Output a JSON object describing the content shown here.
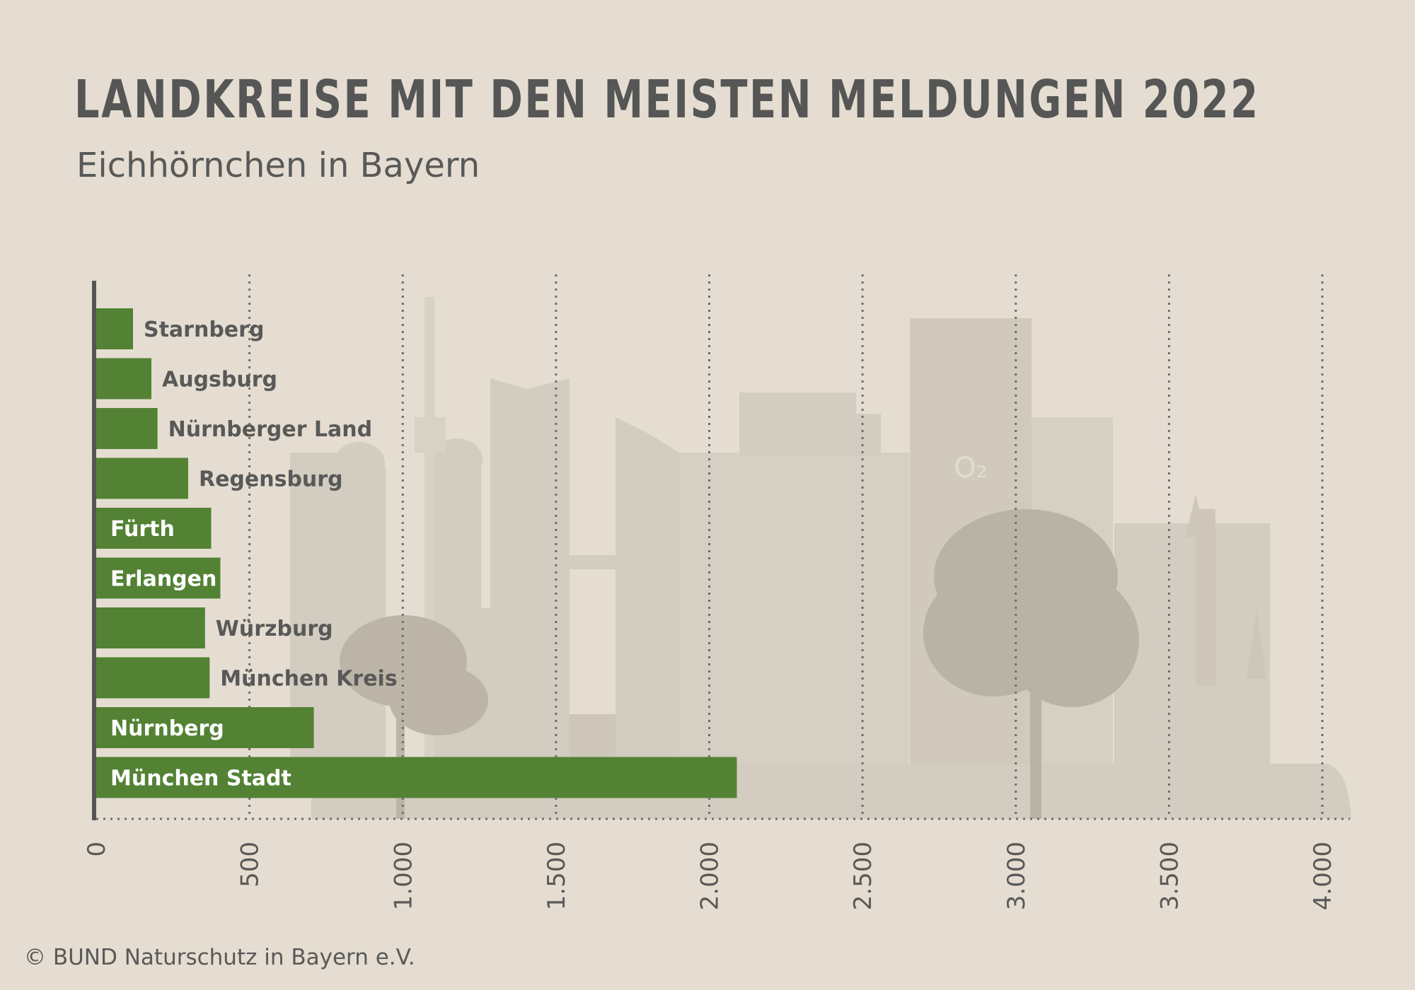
{
  "title": "LANDKREISE MIT DEN MEISTEN MELDUNGEN 2022",
  "subtitle": "Eichhörnchen in Bayern",
  "credit": "© BUND Naturschutz in Bayern e.V.",
  "skyline_sign": "O₂",
  "colors": {
    "background": "#e5ddd1",
    "bar": "#538234",
    "text": "#585958",
    "label_inside": "#ffffff",
    "grid": "#6e6e6c",
    "skyline": "#d3ccc0",
    "skyline_dark": "#c7c0b3",
    "tree": "#b8b2a4"
  },
  "chart_data": {
    "type": "bar",
    "orientation": "horizontal",
    "categories": [
      "Starnberg",
      "Augsburg",
      "Nürnberger Land",
      "Regensburg",
      "Fürth",
      "Erlangen",
      "Würzburg",
      "München Kreis",
      "Nürnberg",
      "München Stadt"
    ],
    "values": [
      120,
      180,
      200,
      300,
      375,
      405,
      355,
      370,
      710,
      2090
    ],
    "label_inside": [
      false,
      false,
      false,
      false,
      true,
      true,
      false,
      false,
      true,
      true
    ],
    "xlim": [
      0,
      4000
    ],
    "xticks": [
      0,
      500,
      1000,
      1500,
      2000,
      2500,
      3000,
      3500,
      4000
    ],
    "xtick_labels": [
      "0",
      "500",
      "1.000",
      "1.500",
      "2.000",
      "2.500",
      "3.000",
      "3.500",
      "4.000"
    ],
    "grid": "vertical dotted",
    "legend": "none"
  }
}
